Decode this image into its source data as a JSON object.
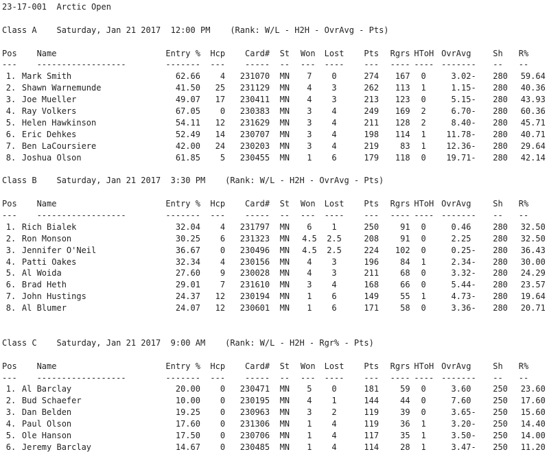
{
  "title": {
    "code": "23-17-001",
    "event": "Arctic Open"
  },
  "columns": [
    {
      "key": "pos",
      "header": "Pos",
      "dash": "---"
    },
    {
      "key": "name",
      "header": "Name",
      "dash": "------------------"
    },
    {
      "key": "entry",
      "header": "Entry %",
      "dash": "-------"
    },
    {
      "key": "hcp",
      "header": "Hcp",
      "dash": "---"
    },
    {
      "key": "card",
      "header": "Card#",
      "dash": "-----"
    },
    {
      "key": "st",
      "header": "St",
      "dash": "--"
    },
    {
      "key": "won",
      "header": "Won",
      "dash": "---"
    },
    {
      "key": "lost",
      "header": "Lost",
      "dash": "----"
    },
    {
      "key": "pts",
      "header": "Pts",
      "dash": "---"
    },
    {
      "key": "rgrs",
      "header": "Rgrs",
      "dash": "----"
    },
    {
      "key": "htoh",
      "header": "HToH",
      "dash": "----"
    },
    {
      "key": "ovravg",
      "header": "OvrAvg",
      "dash": "-------"
    },
    {
      "key": "sh",
      "header": "Sh",
      "dash": "--"
    },
    {
      "key": "rpct",
      "header": "R%",
      "dash": "--"
    }
  ],
  "sections": [
    {
      "class": "Class A",
      "date": "Saturday, Jan 21 2017",
      "time": "12:00 PM",
      "rank": "(Rank: W/L - H2H - OvrAvg - Pts)",
      "rows": [
        {
          "pos": "1.",
          "name": "Mark Smith",
          "entry": "62.66",
          "hcp": "4",
          "card": "231070",
          "st": "MN",
          "won": "7",
          "lost": "0",
          "pts": "274",
          "rgrs": "167",
          "htoh": "0",
          "ovravg": "3.02-",
          "sh": "280",
          "rpct": "59.64"
        },
        {
          "pos": "2.",
          "name": "Shawn Warnemunde",
          "entry": "41.50",
          "hcp": "25",
          "card": "231129",
          "st": "MN",
          "won": "4",
          "lost": "3",
          "pts": "262",
          "rgrs": "113",
          "htoh": "1",
          "ovravg": "1.15-",
          "sh": "280",
          "rpct": "40.36"
        },
        {
          "pos": "3.",
          "name": "Joe Mueller",
          "entry": "49.07",
          "hcp": "17",
          "card": "230411",
          "st": "MN",
          "won": "4",
          "lost": "3",
          "pts": "213",
          "rgrs": "123",
          "htoh": "0",
          "ovravg": "5.15-",
          "sh": "280",
          "rpct": "43.93"
        },
        {
          "pos": "4.",
          "name": "Ray Volkers",
          "entry": "67.05",
          "hcp": "0",
          "card": "230383",
          "st": "MN",
          "won": "3",
          "lost": "4",
          "pts": "249",
          "rgrs": "169",
          "htoh": "2",
          "ovravg": "6.70-",
          "sh": "280",
          "rpct": "60.36"
        },
        {
          "pos": "5.",
          "name": "Helen Hawkinson",
          "entry": "54.11",
          "hcp": "12",
          "card": "231629",
          "st": "MN",
          "won": "3",
          "lost": "4",
          "pts": "211",
          "rgrs": "128",
          "htoh": "2",
          "ovravg": "8.40-",
          "sh": "280",
          "rpct": "45.71"
        },
        {
          "pos": "6.",
          "name": "Eric Dehkes",
          "entry": "52.49",
          "hcp": "14",
          "card": "230707",
          "st": "MN",
          "won": "3",
          "lost": "4",
          "pts": "198",
          "rgrs": "114",
          "htoh": "1",
          "ovravg": "11.78-",
          "sh": "280",
          "rpct": "40.71"
        },
        {
          "pos": "7.",
          "name": "Ben LaCoursiere",
          "entry": "42.00",
          "hcp": "24",
          "card": "230203",
          "st": "MN",
          "won": "3",
          "lost": "4",
          "pts": "219",
          "rgrs": "83",
          "htoh": "1",
          "ovravg": "12.36-",
          "sh": "280",
          "rpct": "29.64"
        },
        {
          "pos": "8.",
          "name": "Joshua Olson",
          "entry": "61.85",
          "hcp": "5",
          "card": "230455",
          "st": "MN",
          "won": "1",
          "lost": "6",
          "pts": "179",
          "rgrs": "118",
          "htoh": "0",
          "ovravg": "19.71-",
          "sh": "280",
          "rpct": "42.14"
        }
      ]
    },
    {
      "class": "Class B",
      "date": "Saturday, Jan 21 2017",
      "time": "3:30 PM",
      "rank": "(Rank: W/L - H2H - OvrAvg - Pts)",
      "rows": [
        {
          "pos": "1.",
          "name": "Rich Bialek",
          "entry": "32.04",
          "hcp": "4",
          "card": "231797",
          "st": "MN",
          "won": "6",
          "lost": "1",
          "pts": "250",
          "rgrs": "91",
          "htoh": "0",
          "ovravg": "0.46",
          "sh": "280",
          "rpct": "32.50"
        },
        {
          "pos": "2.",
          "name": "Ron Monson",
          "entry": "30.25",
          "hcp": "6",
          "card": "231323",
          "st": "MN",
          "won": "4.5",
          "lost": "2.5",
          "pts": "208",
          "rgrs": "91",
          "htoh": "0",
          "ovravg": "2.25",
          "sh": "280",
          "rpct": "32.50"
        },
        {
          "pos": "3.",
          "name": "Jennifer O'Neil",
          "entry": "36.67",
          "hcp": "0",
          "card": "230496",
          "st": "MN",
          "won": "4.5",
          "lost": "2.5",
          "pts": "224",
          "rgrs": "102",
          "htoh": "0",
          "ovravg": "0.25-",
          "sh": "280",
          "rpct": "36.43"
        },
        {
          "pos": "4.",
          "name": "Patti Oakes",
          "entry": "32.34",
          "hcp": "4",
          "card": "230156",
          "st": "MN",
          "won": "4",
          "lost": "3",
          "pts": "196",
          "rgrs": "84",
          "htoh": "1",
          "ovravg": "2.34-",
          "sh": "280",
          "rpct": "30.00"
        },
        {
          "pos": "5.",
          "name": "Al Woida",
          "entry": "27.60",
          "hcp": "9",
          "card": "230028",
          "st": "MN",
          "won": "4",
          "lost": "3",
          "pts": "211",
          "rgrs": "68",
          "htoh": "0",
          "ovravg": "3.32-",
          "sh": "280",
          "rpct": "24.29"
        },
        {
          "pos": "6.",
          "name": "Brad Heth",
          "entry": "29.01",
          "hcp": "7",
          "card": "231610",
          "st": "MN",
          "won": "3",
          "lost": "4",
          "pts": "168",
          "rgrs": "66",
          "htoh": "0",
          "ovravg": "5.44-",
          "sh": "280",
          "rpct": "23.57"
        },
        {
          "pos": "7.",
          "name": "John Hustings",
          "entry": "24.37",
          "hcp": "12",
          "card": "230194",
          "st": "MN",
          "won": "1",
          "lost": "6",
          "pts": "149",
          "rgrs": "55",
          "htoh": "1",
          "ovravg": "4.73-",
          "sh": "280",
          "rpct": "19.64"
        },
        {
          "pos": "8.",
          "name": "Al Blumer",
          "entry": "24.07",
          "hcp": "12",
          "card": "230601",
          "st": "MN",
          "won": "1",
          "lost": "6",
          "pts": "171",
          "rgrs": "58",
          "htoh": "0",
          "ovravg": "3.36-",
          "sh": "280",
          "rpct": "20.71"
        }
      ]
    },
    {
      "class": "Class C",
      "date": "Saturday, Jan 21 2017",
      "time": "9:00 AM",
      "rank": "(Rank: W/L - H2H - Rgr% - Pts)",
      "rows": [
        {
          "pos": "1.",
          "name": "Al Barclay",
          "entry": "20.00",
          "hcp": "0",
          "card": "230471",
          "st": "MN",
          "won": "5",
          "lost": "0",
          "pts": "181",
          "rgrs": "59",
          "htoh": "0",
          "ovravg": "3.60",
          "sh": "250",
          "rpct": "23.60"
        },
        {
          "pos": "2.",
          "name": "Bud Schaefer",
          "entry": "10.00",
          "hcp": "0",
          "card": "230195",
          "st": "MN",
          "won": "4",
          "lost": "1",
          "pts": "144",
          "rgrs": "44",
          "htoh": "0",
          "ovravg": "7.60",
          "sh": "250",
          "rpct": "17.60"
        },
        {
          "pos": "3.",
          "name": "Dan Belden",
          "entry": "19.25",
          "hcp": "0",
          "card": "230963",
          "st": "MN",
          "won": "3",
          "lost": "2",
          "pts": "119",
          "rgrs": "39",
          "htoh": "0",
          "ovravg": "3.65-",
          "sh": "250",
          "rpct": "15.60"
        },
        {
          "pos": "4.",
          "name": "Paul Olson",
          "entry": "17.60",
          "hcp": "0",
          "card": "231306",
          "st": "MN",
          "won": "1",
          "lost": "4",
          "pts": "119",
          "rgrs": "36",
          "htoh": "1",
          "ovravg": "3.20-",
          "sh": "250",
          "rpct": "14.40"
        },
        {
          "pos": "5.",
          "name": "Ole Hanson",
          "entry": "17.50",
          "hcp": "0",
          "card": "230706",
          "st": "MN",
          "won": "1",
          "lost": "4",
          "pts": "117",
          "rgrs": "35",
          "htoh": "1",
          "ovravg": "3.50-",
          "sh": "250",
          "rpct": "14.00"
        },
        {
          "pos": "6.",
          "name": "Jeremy Barclay",
          "entry": "14.67",
          "hcp": "0",
          "card": "230485",
          "st": "MN",
          "won": "1",
          "lost": "4",
          "pts": "114",
          "rgrs": "28",
          "htoh": "1",
          "ovravg": "3.47-",
          "sh": "250",
          "rpct": "11.20"
        }
      ]
    }
  ]
}
